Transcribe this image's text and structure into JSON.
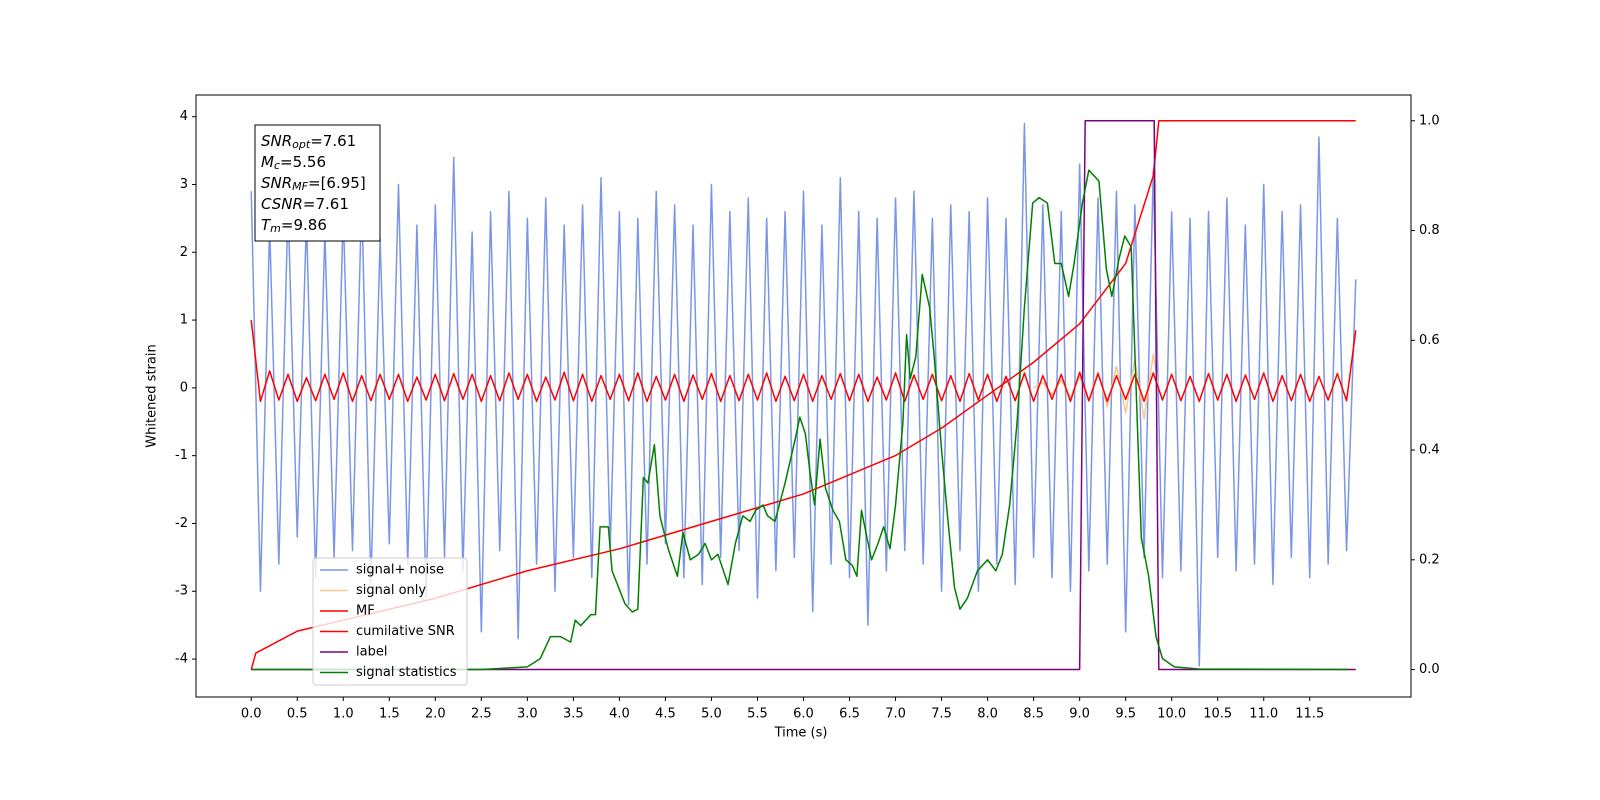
{
  "chart_data": {
    "type": "line",
    "xlabel": "Time (s)",
    "ylabel": "Whitened strain",
    "xlim": [
      -0.6,
      12.6
    ],
    "ylim": [
      -4.56,
      4.32
    ],
    "y2lim": [
      -0.05,
      1.047
    ],
    "xticks": [
      {
        "value": 0,
        "label": "0.0"
      },
      0.5,
      {
        "value": 1,
        "label": "1.0"
      },
      1.5,
      {
        "value": 2,
        "label": "2.0"
      },
      2.5,
      {
        "value": 3,
        "label": "3.0"
      },
      3.5,
      {
        "value": 4,
        "label": "4.0"
      },
      4.5,
      {
        "value": 5,
        "label": "5.0"
      },
      5.5,
      {
        "value": 6,
        "label": "6.0"
      },
      6.5,
      {
        "value": 7,
        "label": "7.0"
      },
      7.5,
      {
        "value": 8,
        "label": "8.0"
      },
      8.5,
      {
        "value": 9,
        "label": "9.0"
      },
      9.5,
      {
        "value": 10,
        "label": "10.0"
      },
      10.5,
      {
        "value": 11,
        "label": "11.0"
      },
      11.5
    ],
    "yticks": [
      -4,
      -3,
      -2,
      -1,
      0,
      1,
      2,
      3,
      4
    ],
    "y2ticks": [
      {
        "value": 0,
        "label": "0.0"
      },
      0.2,
      0.4,
      0.6,
      0.8,
      {
        "value": 1,
        "label": "1.0"
      }
    ],
    "legend": "lower left",
    "annotation": [
      {
        "symbol": "SNR",
        "sub": "opt",
        "rest": "=7.61"
      },
      {
        "symbol": "M",
        "sub": "c",
        "rest": "=5.56"
      },
      {
        "symbol": "SNR",
        "sub": "MF",
        "rest": "=[6.95]"
      },
      {
        "symbol": "CSNR",
        "sub": "",
        "rest": "=7.61"
      },
      {
        "symbol": "T",
        "sub": "m",
        "rest": "=9.86"
      }
    ],
    "x": [
      0,
      0.1,
      0.2,
      0.3,
      0.4,
      0.5,
      0.6,
      0.7,
      0.8,
      0.9,
      1,
      1.1,
      1.2,
      1.3,
      1.4,
      1.5,
      1.6,
      1.7,
      1.8,
      1.9,
      2,
      2.1,
      2.2,
      2.3,
      2.4,
      2.5,
      2.6,
      2.7,
      2.8,
      2.9,
      3,
      3.1,
      3.2,
      3.3,
      3.4,
      3.5,
      3.6,
      3.7,
      3.8,
      3.9,
      4,
      4.1,
      4.2,
      4.3,
      4.4,
      4.5,
      4.6,
      4.7,
      4.8,
      4.9,
      5,
      5.1,
      5.2,
      5.3,
      5.4,
      5.5,
      5.6,
      5.7,
      5.8,
      5.9,
      6,
      6.1,
      6.2,
      6.3,
      6.4,
      6.5,
      6.6,
      6.7,
      6.8,
      6.9,
      7,
      7.1,
      7.2,
      7.3,
      7.4,
      7.5,
      7.6,
      7.7,
      7.8,
      7.9,
      8,
      8.1,
      8.2,
      8.3,
      8.4,
      8.5,
      8.6,
      8.7,
      8.8,
      8.9,
      9,
      9.1,
      9.2,
      9.3,
      9.4,
      9.5,
      9.6,
      9.7,
      9.8,
      9.9,
      10,
      10.1,
      10.2,
      10.3,
      10.4,
      10.5,
      10.6,
      10.7,
      10.8,
      10.9,
      11,
      11.1,
      11.2,
      11.3,
      11.4,
      11.5,
      11.6,
      11.7,
      11.8,
      11.9,
      12
    ],
    "series": [
      {
        "name": "signal+ noise",
        "color": "#7b96e8",
        "values": [
          2.9,
          -3.0,
          2.4,
          -2.6,
          2.7,
          -2.2,
          2.5,
          -2.8,
          2.3,
          -2.5,
          2.6,
          -2.4,
          2.8,
          -2.9,
          2.2,
          -2.3,
          3.0,
          -2.6,
          2.4,
          -3.1,
          2.7,
          -2.5,
          3.4,
          -2.7,
          2.3,
          -3.6,
          2.6,
          -2.4,
          2.9,
          -3.7,
          2.5,
          -2.6,
          2.8,
          -3.0,
          2.4,
          -2.5,
          2.7,
          -2.8,
          3.1,
          -2.4,
          2.6,
          -3.2,
          2.5,
          -2.6,
          2.9,
          -2.3,
          2.7,
          -2.8,
          2.4,
          -2.9,
          3.0,
          -2.5,
          2.6,
          -2.4,
          2.8,
          -3.1,
          2.5,
          -2.7,
          2.6,
          -2.5,
          2.9,
          -3.3,
          2.4,
          -2.6,
          3.1,
          -2.8,
          2.6,
          -3.5,
          2.5,
          -2.7,
          2.8,
          -2.4,
          2.9,
          -2.6,
          2.5,
          -3.0,
          2.7,
          -2.4,
          2.6,
          -3.0,
          2.8,
          -2.6,
          2.5,
          -2.9,
          3.9,
          -2.5,
          2.7,
          -2.8,
          2.6,
          -3.0,
          3.3,
          -2.7,
          2.8,
          -2.6,
          2.9,
          -3.6,
          2.7,
          -2.5,
          3.2,
          -2.8,
          2.6,
          -2.7,
          2.5,
          -4.1,
          2.6,
          -2.5,
          2.8,
          -2.7,
          2.4,
          -2.6,
          3.0,
          -2.9,
          2.6,
          -2.5,
          2.7,
          -2.8,
          3.7,
          -2.6,
          2.5,
          -2.4,
          1.6
        ]
      },
      {
        "name": "signal only",
        "color": "#f7c98c",
        "x": [
          8.5,
          8.6,
          8.7,
          8.8,
          8.9,
          9.0,
          9.1,
          9.2,
          9.3,
          9.4,
          9.5,
          9.6,
          9.7,
          9.8,
          9.86
        ],
        "values": [
          0,
          0.08,
          -0.1,
          0.12,
          -0.14,
          0.17,
          -0.2,
          0.24,
          -0.28,
          0.32,
          -0.37,
          0.42,
          -0.46,
          0.5,
          0
        ]
      },
      {
        "name": "MF",
        "color": "#ff0000",
        "values": [
          1.0,
          -0.2,
          0.25,
          -0.18,
          0.2,
          -0.2,
          0.15,
          -0.19,
          0.2,
          -0.17,
          0.22,
          -0.2,
          0.18,
          -0.19,
          0.2,
          -0.17,
          0.2,
          -0.2,
          0.16,
          -0.18,
          0.2,
          -0.19,
          0.21,
          -0.17,
          0.2,
          -0.2,
          0.18,
          -0.19,
          0.22,
          -0.17,
          0.2,
          -0.2,
          0.16,
          -0.18,
          0.23,
          -0.19,
          0.2,
          -0.2,
          0.18,
          -0.17,
          0.2,
          -0.19,
          0.22,
          -0.2,
          0.17,
          -0.18,
          0.2,
          -0.2,
          0.19,
          -0.17,
          0.21,
          -0.2,
          0.18,
          -0.19,
          0.2,
          -0.18,
          0.22,
          -0.2,
          0.17,
          -0.19,
          0.2,
          -0.2,
          0.18,
          -0.17,
          0.21,
          -0.19,
          0.2,
          -0.2,
          0.16,
          -0.18,
          0.22,
          -0.2,
          0.19,
          -0.17,
          0.2,
          -0.19,
          0.18,
          -0.2,
          0.21,
          -0.18,
          0.2,
          -0.2,
          0.17,
          -0.19,
          0.22,
          -0.2,
          0.18,
          -0.17,
          0.2,
          -0.2,
          0.23,
          -0.19,
          0.21,
          -0.2,
          0.18,
          -0.17,
          0.2,
          -0.2,
          0.22,
          -0.18,
          0.2,
          -0.19,
          0.17,
          -0.2,
          0.21,
          -0.18,
          0.2,
          -0.2,
          0.19,
          -0.17,
          0.22,
          -0.2,
          0.18,
          -0.19,
          0.2,
          -0.2,
          0.17,
          -0.18,
          0.21,
          -0.19,
          0.85
        ]
      },
      {
        "name": "cumilative SNR",
        "color": "#ff0000",
        "axis": "y2",
        "x": [
          0,
          0.05,
          0.5,
          1,
          2,
          3,
          4,
          5,
          6,
          7,
          7.5,
          8,
          8.5,
          9,
          9.5,
          9.8,
          9.86,
          12
        ],
        "values": [
          0,
          0.03,
          0.07,
          0.09,
          0.13,
          0.18,
          0.22,
          0.27,
          0.32,
          0.39,
          0.44,
          0.5,
          0.56,
          0.63,
          0.74,
          0.9,
          1,
          1
        ]
      },
      {
        "name": "label",
        "color": "#800080",
        "axis": "y2",
        "x": [
          0,
          9.0,
          9.06,
          9.81,
          9.86,
          12
        ],
        "values": [
          0,
          0,
          1,
          1,
          0,
          0
        ]
      },
      {
        "name": "signal statistics",
        "color": "#008000",
        "axis": "y2",
        "x": [
          0,
          2.5,
          2.7,
          3.0,
          3.14,
          3.25,
          3.36,
          3.47,
          3.52,
          3.58,
          3.69,
          3.74,
          3.79,
          3.88,
          3.92,
          4.06,
          4.14,
          4.2,
          4.26,
          4.31,
          4.38,
          4.44,
          4.53,
          4.63,
          4.69,
          4.77,
          4.86,
          4.93,
          5.0,
          5.07,
          5.18,
          5.26,
          5.34,
          5.42,
          5.48,
          5.56,
          5.61,
          5.69,
          5.8,
          5.91,
          5.96,
          6.02,
          6.07,
          6.12,
          6.18,
          6.24,
          6.32,
          6.39,
          6.46,
          6.53,
          6.58,
          6.63,
          6.69,
          6.74,
          6.81,
          6.87,
          6.94,
          7.0,
          7.08,
          7.12,
          7.16,
          7.22,
          7.29,
          7.37,
          7.42,
          7.5,
          7.57,
          7.64,
          7.7,
          7.78,
          7.89,
          8.0,
          8.09,
          8.16,
          8.24,
          8.32,
          8.4,
          8.49,
          8.56,
          8.65,
          8.73,
          8.8,
          8.88,
          8.94,
          9.03,
          9.1,
          9.21,
          9.29,
          9.35,
          9.43,
          9.49,
          9.56,
          9.61,
          9.67,
          9.75,
          9.83,
          9.9,
          10.03,
          10.3,
          11.92
        ],
        "values": [
          0,
          0,
          0.002,
          0.005,
          0.02,
          0.06,
          0.06,
          0.05,
          0.09,
          0.08,
          0.1,
          0.1,
          0.26,
          0.26,
          0.18,
          0.12,
          0.105,
          0.11,
          0.35,
          0.34,
          0.41,
          0.28,
          0.22,
          0.17,
          0.25,
          0.2,
          0.21,
          0.23,
          0.2,
          0.21,
          0.155,
          0.23,
          0.28,
          0.27,
          0.29,
          0.3,
          0.28,
          0.27,
          0.34,
          0.42,
          0.46,
          0.43,
          0.36,
          0.3,
          0.42,
          0.33,
          0.29,
          0.27,
          0.2,
          0.19,
          0.17,
          0.29,
          0.24,
          0.2,
          0.23,
          0.26,
          0.22,
          0.3,
          0.45,
          0.61,
          0.53,
          0.57,
          0.72,
          0.66,
          0.57,
          0.4,
          0.27,
          0.15,
          0.11,
          0.13,
          0.18,
          0.2,
          0.18,
          0.21,
          0.3,
          0.45,
          0.66,
          0.85,
          0.86,
          0.85,
          0.74,
          0.74,
          0.68,
          0.74,
          0.85,
          0.91,
          0.89,
          0.73,
          0.68,
          0.75,
          0.79,
          0.77,
          0.53,
          0.24,
          0.17,
          0.06,
          0.02,
          0.005,
          0.001,
          0
        ]
      }
    ]
  }
}
